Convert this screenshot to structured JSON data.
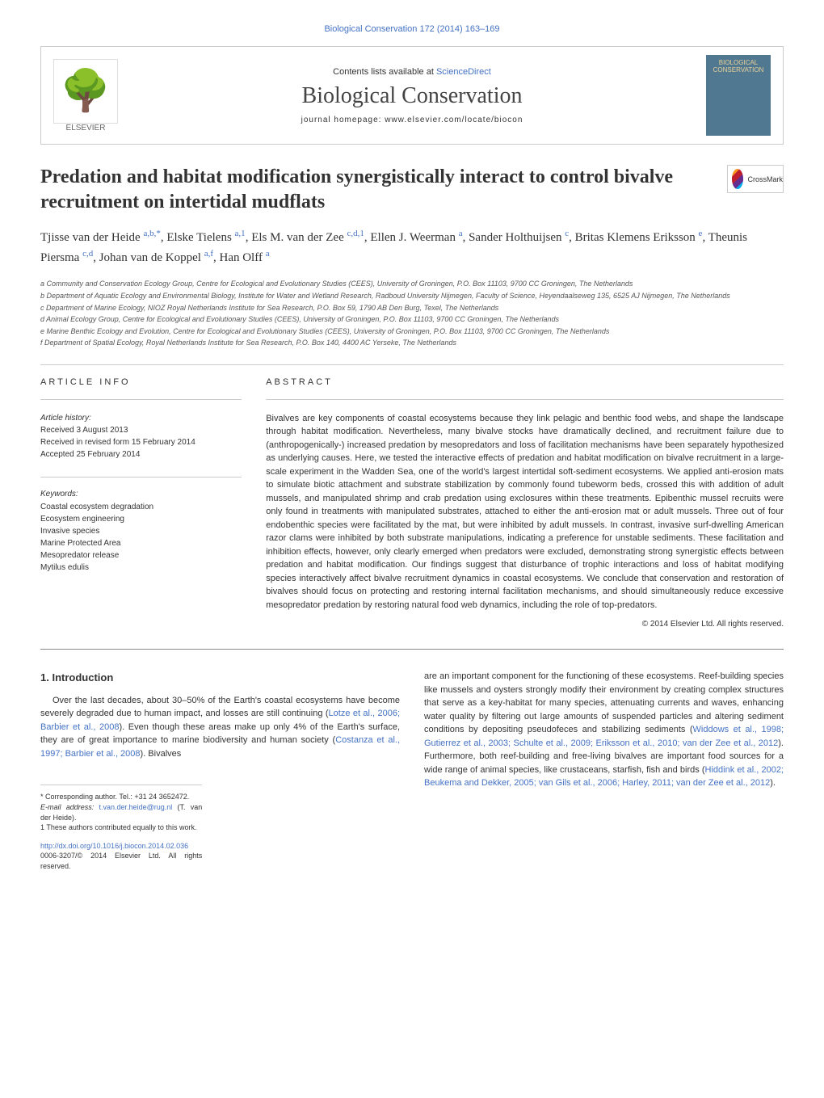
{
  "header": {
    "top_link": "Biological Conservation 172 (2014) 163–169",
    "contents_line_prefix": "Contents lists available at ",
    "contents_line_link": "ScienceDirect",
    "journal_name": "Biological Conservation",
    "homepage_prefix": "journal homepage: ",
    "homepage_url": "www.elsevier.com/locate/biocon",
    "publisher": "ELSEVIER",
    "cover_text": "BIOLOGICAL CONSERVATION",
    "crossmark": "CrossMark"
  },
  "title": "Predation and habitat modification synergistically interact to control bivalve recruitment on intertidal mudflats",
  "authors_html": "Tjisse van der Heide <sup>a,b,*</sup>, Elske Tielens <sup>a,1</sup>, Els M. van der Zee <sup>c,d,1</sup>, Ellen J. Weerman <sup>a</sup>, Sander Holthuijsen <sup>c</sup>, Britas Klemens Eriksson <sup>e</sup>, Theunis Piersma <sup>c,d</sup>, Johan van de Koppel <sup>a,f</sup>, Han Olff <sup>a</sup>",
  "affiliations": [
    "a Community and Conservation Ecology Group, Centre for Ecological and Evolutionary Studies (CEES), University of Groningen, P.O. Box 11103, 9700 CC Groningen, The Netherlands",
    "b Department of Aquatic Ecology and Environmental Biology, Institute for Water and Wetland Research, Radboud University Nijmegen, Faculty of Science, Heyendaalseweg 135, 6525 AJ Nijmegen, The Netherlands",
    "c Department of Marine Ecology, NIOZ Royal Netherlands Institute for Sea Research, P.O. Box 59, 1790 AB Den Burg, Texel, The Netherlands",
    "d Animal Ecology Group, Centre for Ecological and Evolutionary Studies (CEES), University of Groningen, P.O. Box 11103, 9700 CC Groningen, The Netherlands",
    "e Marine Benthic Ecology and Evolution, Centre for Ecological and Evolutionary Studies (CEES), University of Groningen, P.O. Box 11103, 9700 CC Groningen, The Netherlands",
    "f Department of Spatial Ecology, Royal Netherlands Institute for Sea Research, P.O. Box 140, 4400 AC Yerseke, The Netherlands"
  ],
  "article_info": {
    "header": "ARTICLE INFO",
    "history_label": "Article history:",
    "received": "Received 3 August 2013",
    "revised": "Received in revised form 15 February 2014",
    "accepted": "Accepted 25 February 2014",
    "keywords_label": "Keywords:",
    "keywords": [
      "Coastal ecosystem degradation",
      "Ecosystem engineering",
      "Invasive species",
      "Marine Protected Area",
      "Mesopredator release",
      "Mytilus edulis"
    ]
  },
  "abstract": {
    "header": "ABSTRACT",
    "text": "Bivalves are key components of coastal ecosystems because they link pelagic and benthic food webs, and shape the landscape through habitat modification. Nevertheless, many bivalve stocks have dramatically declined, and recruitment failure due to (anthropogenically-) increased predation by mesopredators and loss of facilitation mechanisms have been separately hypothesized as underlying causes. Here, we tested the interactive effects of predation and habitat modification on bivalve recruitment in a large-scale experiment in the Wadden Sea, one of the world's largest intertidal soft-sediment ecosystems. We applied anti-erosion mats to simulate biotic attachment and substrate stabilization by commonly found tubeworm beds, crossed this with addition of adult mussels, and manipulated shrimp and crab predation using exclosures within these treatments. Epibenthic mussel recruits were only found in treatments with manipulated substrates, attached to either the anti-erosion mat or adult mussels. Three out of four endobenthic species were facilitated by the mat, but were inhibited by adult mussels. In contrast, invasive surf-dwelling American razor clams were inhibited by both substrate manipulations, indicating a preference for unstable sediments. These facilitation and inhibition effects, however, only clearly emerged when predators were excluded, demonstrating strong synergistic effects between predation and habitat modification. Our findings suggest that disturbance of trophic interactions and loss of habitat modifying species interactively affect bivalve recruitment dynamics in coastal ecosystems. We conclude that conservation and restoration of bivalves should focus on protecting and restoring internal facilitation mechanisms, and should simultaneously reduce excessive mesopredator predation by restoring natural food web dynamics, including the role of top-predators.",
    "copyright": "© 2014 Elsevier Ltd. All rights reserved."
  },
  "introduction": {
    "heading": "1. Introduction",
    "col1_p1": "Over the last decades, about 30–50% of the Earth's coastal ecosystems have become severely degraded due to human impact, and losses are still continuing (",
    "col1_ref1": "Lotze et al., 2006; Barbier et al., 2008",
    "col1_p2": "). Even though these areas make up only 4% of the Earth's surface, they are of great importance to marine biodiversity and human society (",
    "col1_ref2": "Costanza et al., 1997; Barbier et al., 2008",
    "col1_p3": "). Bivalves",
    "col2_p1": "are an important component for the functioning of these ecosystems. Reef-building species like mussels and oysters strongly modify their environment by creating complex structures that serve as a key-habitat for many species, attenuating currents and waves, enhancing water quality by filtering out large amounts of suspended particles and altering sediment conditions by depositing pseudofeces and stabilizing sediments (",
    "col2_ref1": "Widdows et al., 1998; Gutierrez et al., 2003; Schulte et al., 2009; Eriksson et al., 2010; van der Zee et al., 2012",
    "col2_p2": "). Furthermore, both reef-building and free-living bivalves are important food sources for a wide range of animal species, like crustaceans, starfish, fish and birds (",
    "col2_ref2": "Hiddink et al., 2002; Beukema and Dekker, 2005; van Gils et al., 2006; Harley, 2011; van der Zee et al., 2012",
    "col2_p3": ")."
  },
  "footnotes": {
    "corresponding": "* Corresponding author. Tel.: +31 24 3652472.",
    "email_label": "E-mail address: ",
    "email": "t.van.der.heide@rug.nl",
    "email_suffix": " (T. van der Heide).",
    "contributed": "1 These authors contributed equally to this work.",
    "doi": "http://dx.doi.org/10.1016/j.biocon.2014.02.036",
    "copyright": "0006-3207/© 2014 Elsevier Ltd. All rights reserved."
  }
}
